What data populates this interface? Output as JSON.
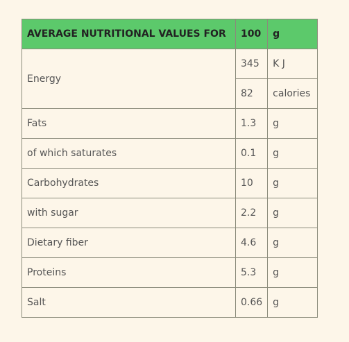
{
  "table": {
    "header": [
      "AVERAGE NUTRITIONAL VALUES FOR",
      "100",
      "g"
    ],
    "rows": [
      {
        "label": "Energy",
        "values": [
          [
            "345",
            "K J"
          ],
          [
            "82",
            "calories"
          ]
        ]
      },
      {
        "label": "Fats",
        "values": [
          [
            "1.3",
            "g"
          ]
        ]
      },
      {
        "label": "of which saturates",
        "values": [
          [
            "0.1",
            "g"
          ]
        ]
      },
      {
        "label": "Carbohydrates",
        "values": [
          [
            "10",
            "g"
          ]
        ]
      },
      {
        "label": "with sugar",
        "values": [
          [
            "2.2",
            "g"
          ]
        ]
      },
      {
        "label": "Dietary fiber",
        "values": [
          [
            "4.6",
            "g"
          ]
        ]
      },
      {
        "label": "Proteins",
        "values": [
          [
            "5.3",
            "g"
          ]
        ]
      },
      {
        "label": "Salt",
        "values": [
          [
            "0.66",
            "g"
          ]
        ]
      }
    ]
  }
}
